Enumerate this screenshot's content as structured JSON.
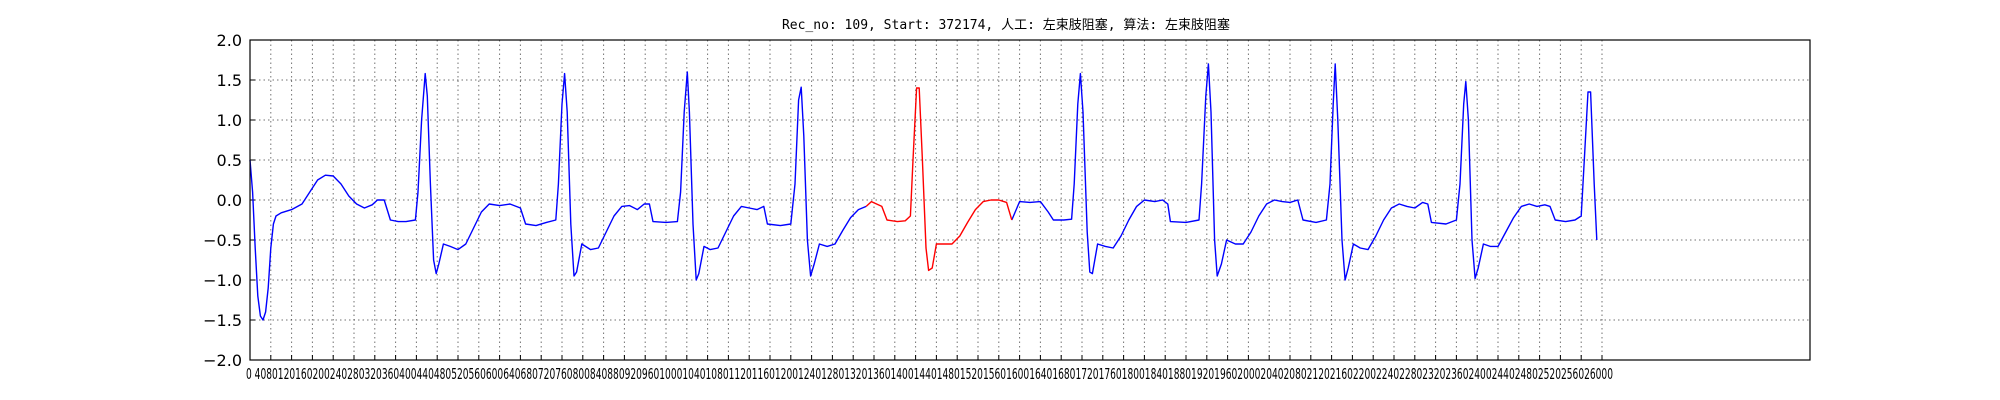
{
  "chart_data": {
    "type": "line",
    "title": "Rec_no: 109, Start: 372174, 人工: 左束肢阻塞, 算法: 左束肢阻塞",
    "xlabel": "",
    "ylabel": "",
    "xlim": [
      0,
      3000
    ],
    "ylim": [
      -2.0,
      2.0
    ],
    "grid": true,
    "y_ticks": [
      "2.0",
      "1.5",
      "1.0",
      "0.5",
      "0.0",
      "−0.5",
      "−1.0",
      "−1.5",
      "−2.0"
    ],
    "x_ticks": [
      0,
      40,
      80,
      120,
      160,
      200,
      240,
      280,
      320,
      360,
      400,
      440,
      480,
      520,
      560,
      600,
      640,
      680,
      720,
      760,
      800,
      840,
      880,
      920,
      960,
      1000,
      1040,
      1080,
      1120,
      1160,
      1200,
      1240,
      1280,
      1320,
      1360,
      1400,
      1440,
      1480,
      1520,
      1560,
      1600,
      1640,
      1680,
      1720,
      1760,
      1800,
      1840,
      1880,
      1920,
      1960,
      2000,
      2040,
      2080,
      2120,
      2160,
      2200,
      2240,
      2280,
      2320,
      2360,
      2400,
      2440,
      2480,
      2520,
      2560,
      2600
    ],
    "x_tick_labels_text": "0 4080120160200240280320360400440480520560600640680720760800840880920960100010401080112011601200124012801320136014001440148015201560160016401680172017601800184018801920196020002040208021202160220022402280232023602400244024802520256026000",
    "series": [
      {
        "color": "#0000ff",
        "segments": [
          [
            [
              0,
              0.5
            ],
            [
              5,
              0.1
            ],
            [
              10,
              -0.6
            ],
            [
              15,
              -1.2
            ],
            [
              20,
              -1.45
            ],
            [
              25,
              -1.5
            ],
            [
              30,
              -1.4
            ],
            [
              35,
              -1.1
            ],
            [
              40,
              -0.6
            ],
            [
              45,
              -0.3
            ],
            [
              50,
              -0.2
            ],
            [
              60,
              -0.16
            ],
            [
              80,
              -0.12
            ],
            [
              100,
              -0.05
            ],
            [
              115,
              0.1
            ],
            [
              130,
              0.25
            ],
            [
              145,
              0.31
            ],
            [
              160,
              0.3
            ],
            [
              175,
              0.2
            ],
            [
              190,
              0.05
            ],
            [
              205,
              -0.05
            ],
            [
              220,
              -0.1
            ],
            [
              235,
              -0.06
            ],
            [
              245,
              0.0
            ],
            [
              258,
              0.0
            ],
            [
              270,
              -0.25
            ],
            [
              285,
              -0.27
            ],
            [
              300,
              -0.27
            ],
            [
              318,
              -0.25
            ],
            [
              323,
              0.1
            ],
            [
              330,
              1.0
            ],
            [
              337,
              1.58
            ],
            [
              341,
              1.3
            ],
            [
              347,
              0.2
            ],
            [
              353,
              -0.75
            ],
            [
              358,
              -0.92
            ],
            [
              363,
              -0.8
            ],
            [
              372,
              -0.55
            ],
            [
              385,
              -0.58
            ],
            [
              400,
              -0.62
            ],
            [
              415,
              -0.55
            ],
            [
              430,
              -0.35
            ],
            [
              445,
              -0.15
            ],
            [
              460,
              -0.05
            ],
            [
              480,
              -0.07
            ],
            [
              500,
              -0.05
            ],
            [
              520,
              -0.1
            ],
            [
              530,
              -0.3
            ],
            [
              550,
              -0.32
            ],
            [
              570,
              -0.28
            ],
            [
              588,
              -0.25
            ],
            [
              593,
              0.2
            ],
            [
              600,
              1.2
            ],
            [
              605,
              1.58
            ],
            [
              610,
              1.1
            ],
            [
              617,
              -0.3
            ],
            [
              623,
              -0.95
            ],
            [
              628,
              -0.9
            ],
            [
              638,
              -0.55
            ],
            [
              655,
              -0.62
            ],
            [
              670,
              -0.6
            ],
            [
              685,
              -0.4
            ],
            [
              700,
              -0.2
            ],
            [
              715,
              -0.08
            ],
            [
              730,
              -0.07
            ],
            [
              745,
              -0.12
            ],
            [
              758,
              -0.05
            ],
            [
              768,
              -0.05
            ],
            [
              775,
              -0.27
            ],
            [
              800,
              -0.28
            ],
            [
              822,
              -0.27
            ],
            [
              828,
              0.1
            ],
            [
              835,
              1.1
            ],
            [
              841,
              1.6
            ],
            [
              845,
              1.1
            ],
            [
              852,
              -0.3
            ],
            [
              858,
              -1.0
            ],
            [
              863,
              -0.92
            ],
            [
              873,
              -0.58
            ],
            [
              885,
              -0.62
            ],
            [
              900,
              -0.6
            ],
            [
              915,
              -0.4
            ],
            [
              930,
              -0.2
            ],
            [
              945,
              -0.08
            ],
            [
              960,
              -0.1
            ],
            [
              975,
              -0.12
            ],
            [
              988,
              -0.08
            ],
            [
              995,
              -0.3
            ],
            [
              1020,
              -0.32
            ],
            [
              1040,
              -0.3
            ],
            [
              1048,
              0.2
            ],
            [
              1055,
              1.25
            ],
            [
              1060,
              1.41
            ],
            [
              1065,
              0.8
            ],
            [
              1072,
              -0.5
            ],
            [
              1078,
              -0.95
            ],
            [
              1085,
              -0.8
            ],
            [
              1095,
              -0.55
            ],
            [
              1110,
              -0.58
            ],
            [
              1125,
              -0.55
            ],
            [
              1140,
              -0.38
            ],
            [
              1155,
              -0.22
            ],
            [
              1170,
              -0.12
            ],
            [
              1185,
              -0.08
            ]
          ],
          [
            [
              1465,
              -0.25
            ],
            [
              1480,
              -0.02
            ],
            [
              1500,
              -0.03
            ],
            [
              1520,
              -0.02
            ],
            [
              1535,
              -0.15
            ],
            [
              1545,
              -0.25
            ],
            [
              1565,
              -0.25
            ],
            [
              1580,
              -0.24
            ],
            [
              1585,
              0.2
            ],
            [
              1592,
              1.2
            ],
            [
              1597,
              1.58
            ],
            [
              1602,
              1.1
            ],
            [
              1610,
              -0.4
            ],
            [
              1615,
              -0.9
            ],
            [
              1620,
              -0.92
            ],
            [
              1630,
              -0.55
            ],
            [
              1645,
              -0.58
            ],
            [
              1660,
              -0.6
            ],
            [
              1675,
              -0.45
            ],
            [
              1690,
              -0.25
            ],
            [
              1705,
              -0.08
            ],
            [
              1720,
              0.0
            ],
            [
              1740,
              -0.02
            ],
            [
              1755,
              0.0
            ],
            [
              1765,
              -0.05
            ],
            [
              1770,
              -0.27
            ],
            [
              1800,
              -0.28
            ],
            [
              1825,
              -0.25
            ],
            [
              1830,
              0.2
            ],
            [
              1838,
              1.3
            ],
            [
              1843,
              1.7
            ],
            [
              1848,
              1.1
            ],
            [
              1855,
              -0.5
            ],
            [
              1860,
              -0.95
            ],
            [
              1868,
              -0.8
            ],
            [
              1878,
              -0.5
            ],
            [
              1895,
              -0.55
            ],
            [
              1910,
              -0.55
            ],
            [
              1925,
              -0.4
            ],
            [
              1940,
              -0.2
            ],
            [
              1955,
              -0.05
            ],
            [
              1970,
              0.0
            ],
            [
              1985,
              -0.02
            ],
            [
              2000,
              -0.03
            ],
            [
              2015,
              0.0
            ],
            [
              2025,
              -0.25
            ],
            [
              2050,
              -0.28
            ],
            [
              2070,
              -0.25
            ],
            [
              2077,
              0.2
            ],
            [
              2083,
              1.2
            ],
            [
              2087,
              1.7
            ],
            [
              2092,
              1.0
            ],
            [
              2100,
              -0.5
            ],
            [
              2106,
              -1.0
            ],
            [
              2112,
              -0.85
            ],
            [
              2122,
              -0.55
            ],
            [
              2135,
              -0.6
            ],
            [
              2150,
              -0.62
            ],
            [
              2165,
              -0.45
            ],
            [
              2180,
              -0.25
            ],
            [
              2195,
              -0.1
            ],
            [
              2210,
              -0.05
            ],
            [
              2225,
              -0.08
            ],
            [
              2240,
              -0.1
            ],
            [
              2255,
              -0.03
            ],
            [
              2265,
              -0.05
            ],
            [
              2272,
              -0.28
            ],
            [
              2300,
              -0.3
            ],
            [
              2320,
              -0.25
            ],
            [
              2327,
              0.2
            ],
            [
              2334,
              1.2
            ],
            [
              2338,
              1.48
            ],
            [
              2343,
              1.0
            ],
            [
              2350,
              -0.5
            ],
            [
              2356,
              -0.98
            ],
            [
              2362,
              -0.85
            ],
            [
              2372,
              -0.55
            ],
            [
              2385,
              -0.58
            ],
            [
              2400,
              -0.58
            ],
            [
              2415,
              -0.4
            ],
            [
              2430,
              -0.22
            ],
            [
              2445,
              -0.08
            ],
            [
              2460,
              -0.05
            ],
            [
              2475,
              -0.08
            ],
            [
              2490,
              -0.06
            ],
            [
              2500,
              -0.08
            ],
            [
              2510,
              -0.25
            ],
            [
              2530,
              -0.27
            ],
            [
              2548,
              -0.25
            ],
            [
              2560,
              -0.2
            ],
            [
              2566,
              0.5
            ],
            [
              2573,
              1.35
            ],
            [
              2578,
              1.35
            ],
            [
              2585,
              0.2
            ],
            [
              2590,
              -0.5
            ]
          ]
        ]
      },
      {
        "color": "#ff0000",
        "segments": [
          [
            [
              1185,
              -0.08
            ],
            [
              1195,
              -0.02
            ],
            [
              1205,
              -0.05
            ],
            [
              1215,
              -0.08
            ],
            [
              1225,
              -0.25
            ],
            [
              1245,
              -0.27
            ],
            [
              1260,
              -0.26
            ],
            [
              1270,
              -0.2
            ],
            [
              1275,
              0.5
            ],
            [
              1282,
              1.4
            ],
            [
              1287,
              1.4
            ],
            [
              1293,
              0.5
            ],
            [
              1300,
              -0.6
            ],
            [
              1305,
              -0.88
            ],
            [
              1312,
              -0.85
            ],
            [
              1320,
              -0.55
            ],
            [
              1335,
              -0.55
            ],
            [
              1350,
              -0.55
            ],
            [
              1365,
              -0.45
            ],
            [
              1380,
              -0.28
            ],
            [
              1395,
              -0.12
            ],
            [
              1410,
              -0.02
            ],
            [
              1425,
              0.0
            ],
            [
              1440,
              0.0
            ],
            [
              1455,
              -0.03
            ],
            [
              1465,
              -0.25
            ]
          ]
        ]
      }
    ]
  }
}
